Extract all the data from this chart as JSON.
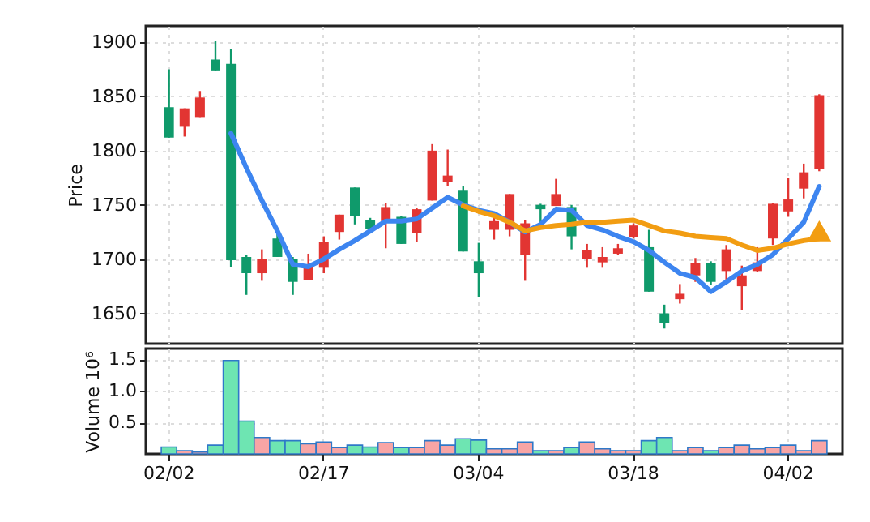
{
  "chart_data": [
    {
      "type": "candlestick",
      "ylabel": "Price",
      "tick_labels": "y",
      "grid": true,
      "categories": [
        null,
        null,
        null,
        null,
        null,
        null,
        null,
        null,
        null,
        null,
        null,
        null,
        null,
        null,
        null,
        null,
        null,
        null,
        null,
        null,
        null,
        null,
        null,
        null,
        null,
        null,
        null,
        null,
        null,
        null,
        null,
        null,
        null,
        null,
        null,
        null,
        null,
        null,
        null,
        null,
        null,
        null,
        null
      ],
      "ylim": [
        1622,
        1915
      ],
      "yticks": [
        1650,
        1700,
        1750,
        1800,
        1850,
        1900
      ],
      "ohlc": [
        [
          1812,
          1875,
          1812,
          1840
        ],
        [
          1839,
          1839,
          1813,
          1822
        ],
        [
          1849,
          1855,
          1831,
          1831
        ],
        [
          1874,
          1901,
          1874,
          1884
        ],
        [
          1699,
          1894,
          1693,
          1880
        ],
        [
          1687,
          1704,
          1667,
          1702
        ],
        [
          1700,
          1709,
          1680,
          1687
        ],
        [
          1702,
          1726,
          1702,
          1719
        ],
        [
          1679,
          1702,
          1667,
          1700
        ],
        [
          1693,
          1705,
          1681,
          1681
        ],
        [
          1716,
          1721,
          1687,
          1692
        ],
        [
          1741,
          1741,
          1718,
          1725
        ],
        [
          1740,
          1766,
          1732,
          1766
        ],
        [
          1728,
          1738,
          1727,
          1736
        ],
        [
          1748,
          1752,
          1710,
          1735
        ],
        [
          1714,
          1740,
          1714,
          1739
        ],
        [
          1746,
          1747,
          1716,
          1724
        ],
        [
          1800,
          1806,
          1754,
          1754
        ],
        [
          1777,
          1801,
          1767,
          1771
        ],
        [
          1707,
          1767,
          1707,
          1763
        ],
        [
          1687,
          1715,
          1665,
          1698
        ],
        [
          1735,
          1739,
          1718,
          1727
        ],
        [
          1760,
          1760,
          1721,
          1727
        ],
        [
          1733,
          1736,
          1680,
          1704
        ],
        [
          1746,
          1751,
          1731,
          1750
        ],
        [
          1760,
          1774,
          1749,
          1749
        ],
        [
          1721,
          1750,
          1709,
          1748
        ],
        [
          1708,
          1714,
          1692,
          1700
        ],
        [
          1702,
          1711,
          1692,
          1697
        ],
        [
          1710,
          1714,
          1704,
          1705
        ],
        [
          1731,
          1733,
          1719,
          1720
        ],
        [
          1670,
          1727,
          1670,
          1711
        ],
        [
          1641,
          1658,
          1636,
          1650
        ],
        [
          1668,
          1677,
          1659,
          1663
        ],
        [
          1696,
          1701,
          1679,
          1685
        ],
        [
          1679,
          1698,
          1676,
          1696
        ],
        [
          1709,
          1713,
          1681,
          1689
        ],
        [
          1685,
          1694,
          1653,
          1675
        ],
        [
          1697,
          1711,
          1688,
          1689
        ],
        [
          1751,
          1752,
          1713,
          1719
        ],
        [
          1755,
          1775,
          1739,
          1744
        ],
        [
          1780,
          1788,
          1756,
          1765
        ],
        [
          1851,
          1852,
          1781,
          1783
        ]
      ],
      "colors": [
        "#0f9a6b",
        "#e23532",
        "#e23532",
        "#0f9a6b",
        "#0f9a6b",
        "#0f9a6b",
        "#e23532",
        "#0f9a6b",
        "#0f9a6b",
        "#e23532",
        "#e23532",
        "#e23532",
        "#0f9a6b",
        "#0f9a6b",
        "#e23532",
        "#0f9a6b",
        "#e23532",
        "#e23532",
        "#e23532",
        "#0f9a6b",
        "#0f9a6b",
        "#e23532",
        "#e23532",
        "#e23532",
        "#0f9a6b",
        "#e23532",
        "#0f9a6b",
        "#e23532",
        "#e23532",
        "#e23532",
        "#e23532",
        "#0f9a6b",
        "#0f9a6b",
        "#e23532",
        "#e23532",
        "#0f9a6b",
        "#e23532",
        "#e23532",
        "#e23532",
        "#e23532",
        "#e23532",
        "#e23532",
        "#e23532"
      ],
      "series": [
        {
          "type": "line",
          "color": "#3d85f0",
          "values": [
            null,
            null,
            null,
            null,
            1816,
            1784,
            1754,
            1726,
            1695,
            1693,
            1700,
            1709,
            1717,
            1726,
            1735,
            1735,
            1737,
            1747,
            1757,
            1750,
            1745,
            1742,
            1734,
            1725,
            1732,
            1746,
            1745,
            1731,
            1727,
            1721,
            1716,
            1708,
            1697,
            1687,
            1683,
            1670,
            1679,
            1689,
            1695,
            1704,
            1719,
            1734,
            1767
          ]
        },
        {
          "type": "line",
          "color": "#f29d12",
          "values": [
            null,
            null,
            null,
            null,
            null,
            null,
            null,
            null,
            null,
            null,
            null,
            null,
            null,
            null,
            null,
            null,
            null,
            null,
            null,
            1749,
            1744,
            1740,
            1734,
            1726,
            1729,
            1731,
            1732,
            1734,
            1734,
            1735,
            1736,
            1731,
            1726,
            1724,
            1721,
            1720,
            1719,
            1713,
            1708,
            1710,
            1714,
            1717,
            1719
          ]
        },
        {
          "type": "scatter",
          "color": "#f29d12",
          "marker": "triangle",
          "values": [
            null,
            null,
            null,
            null,
            null,
            null,
            null,
            null,
            null,
            null,
            null,
            null,
            null,
            null,
            null,
            null,
            null,
            null,
            null,
            null,
            null,
            null,
            null,
            null,
            null,
            null,
            null,
            null,
            null,
            null,
            null,
            null,
            null,
            null,
            null,
            null,
            null,
            null,
            null,
            null,
            null,
            null,
            1726
          ]
        }
      ]
    },
    {
      "type": "bar",
      "ylabel": "Volume  10⁶",
      "grid": true,
      "categories": [
        "02/02",
        null,
        null,
        null,
        null,
        null,
        null,
        null,
        null,
        null,
        "02/17",
        null,
        null,
        null,
        null,
        null,
        null,
        null,
        null,
        null,
        "03/04",
        null,
        null,
        null,
        null,
        null,
        null,
        null,
        null,
        null,
        "03/18",
        null,
        null,
        null,
        null,
        null,
        null,
        null,
        null,
        null,
        "04/02",
        null,
        null
      ],
      "ylim": [
        0,
        1.67
      ],
      "yticks": [
        0.5,
        {
          "value": 1,
          "label": "1.0"
        },
        1.5
      ],
      "values": [
        0.11,
        0.05,
        0.03,
        0.14,
        1.48,
        0.52,
        0.26,
        0.21,
        0.21,
        0.16,
        0.19,
        0.1,
        0.14,
        0.11,
        0.18,
        0.1,
        0.1,
        0.21,
        0.14,
        0.24,
        0.22,
        0.08,
        0.08,
        0.19,
        0.05,
        0.05,
        0.1,
        0.19,
        0.08,
        0.05,
        0.05,
        0.21,
        0.26,
        0.05,
        0.1,
        0.05,
        0.1,
        0.14,
        0.08,
        0.1,
        0.14,
        0.05,
        0.21
      ],
      "colors": [
        "#6ee5b2",
        "#f8a5a5",
        "#f8a5a5",
        "#6ee5b2",
        "#6ee5b2",
        "#6ee5b2",
        "#f8a5a5",
        "#6ee5b2",
        "#6ee5b2",
        "#f8a5a5",
        "#f8a5a5",
        "#f8a5a5",
        "#6ee5b2",
        "#6ee5b2",
        "#f8a5a5",
        "#6ee5b2",
        "#f8a5a5",
        "#f8a5a5",
        "#f8a5a5",
        "#6ee5b2",
        "#6ee5b2",
        "#f8a5a5",
        "#f8a5a5",
        "#f8a5a5",
        "#6ee5b2",
        "#f8a5a5",
        "#6ee5b2",
        "#f8a5a5",
        "#f8a5a5",
        "#f8a5a5",
        "#f8a5a5",
        "#6ee5b2",
        "#6ee5b2",
        "#f8a5a5",
        "#f8a5a5",
        "#6ee5b2",
        "#f8a5a5",
        "#f8a5a5",
        "#f8a5a5",
        "#f8a5a5",
        "#f8a5a5",
        "#f8a5a5",
        "#f8a5a5"
      ]
    }
  ]
}
